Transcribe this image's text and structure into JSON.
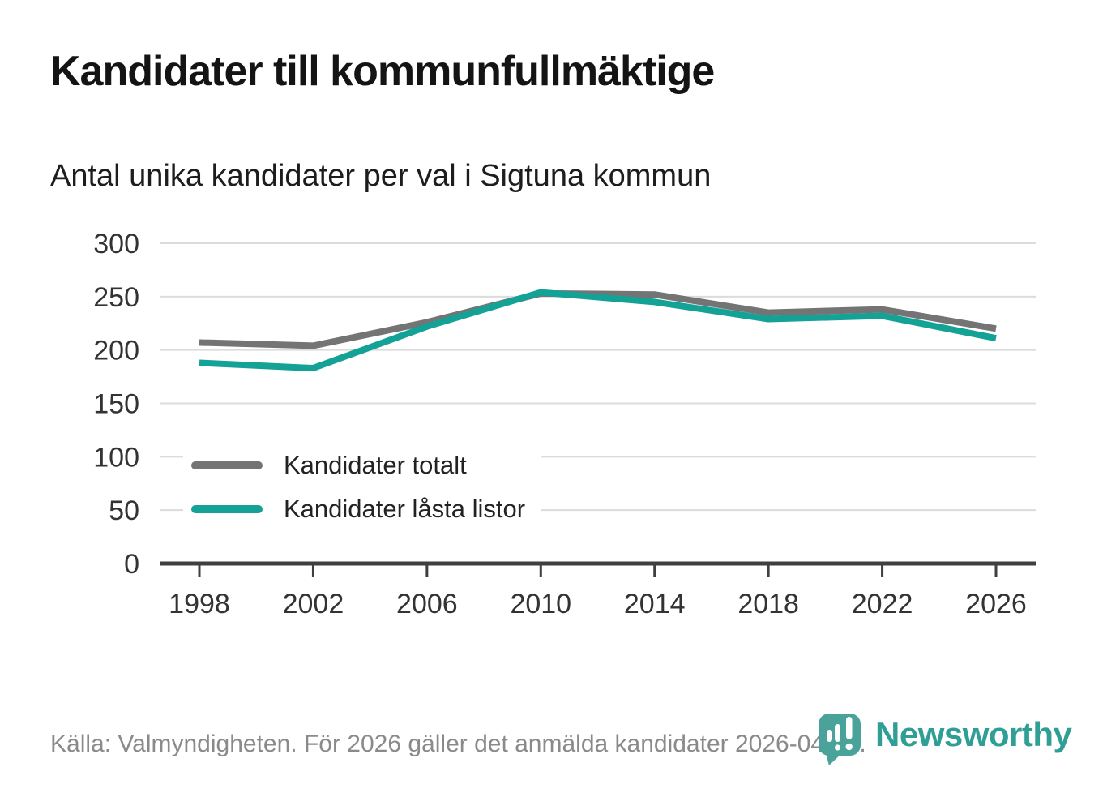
{
  "chart_data": {
    "type": "line",
    "title": "Kandidater till kommunfullmäktige",
    "subtitle": "Antal unika kandidater per val i Sigtuna kommun",
    "categories": [
      "1998",
      "2002",
      "2006",
      "2010",
      "2014",
      "2018",
      "2022",
      "2026"
    ],
    "series": [
      {
        "name": "Kandidater totalt",
        "color": "#747474",
        "values": [
          207,
          204,
          226,
          253,
          252,
          235,
          238,
          220
        ]
      },
      {
        "name": "Kandidater låsta listor",
        "color": "#13a295",
        "values": [
          188,
          183,
          222,
          254,
          245,
          229,
          232,
          211
        ]
      }
    ],
    "xlabel": "",
    "ylabel": "",
    "ylim": [
      0,
      300
    ],
    "yticks": [
      0,
      50,
      100,
      150,
      200,
      250,
      300
    ],
    "grid": true,
    "legend_position": "inside-left",
    "colors": {
      "grid": "#dcdcdc",
      "axis": "#3f3f3f",
      "tick_label": "#333333"
    }
  },
  "footer": {
    "source": "Källa: Valmyndigheten. För 2026 gäller det anmälda kandidater 2026-04-10.",
    "brand": "Newsworthy",
    "brand_color": "#2f9f96",
    "logo_color": "#4aa39b"
  }
}
